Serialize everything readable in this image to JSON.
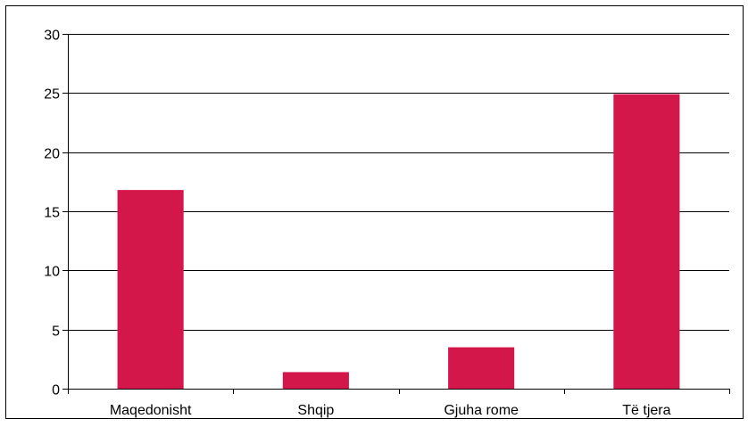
{
  "chart_data": {
    "type": "bar",
    "title": "",
    "xlabel": "",
    "ylabel": "",
    "categories": [
      "Maqedonisht",
      "Shqip",
      "Gjuha rome",
      "Të tjera"
    ],
    "values": [
      16.8,
      1.4,
      3.5,
      24.9
    ],
    "ylim": [
      0,
      30
    ],
    "yticks": [
      0,
      5,
      10,
      15,
      20,
      25,
      30
    ],
    "ytick_labels": [
      "0",
      "5",
      "10",
      "15",
      "20",
      "25",
      "30"
    ],
    "grid": true,
    "legend": "none",
    "bar_color": "#d4174a",
    "grid_color": "#000000",
    "frame_color": "#000000"
  }
}
